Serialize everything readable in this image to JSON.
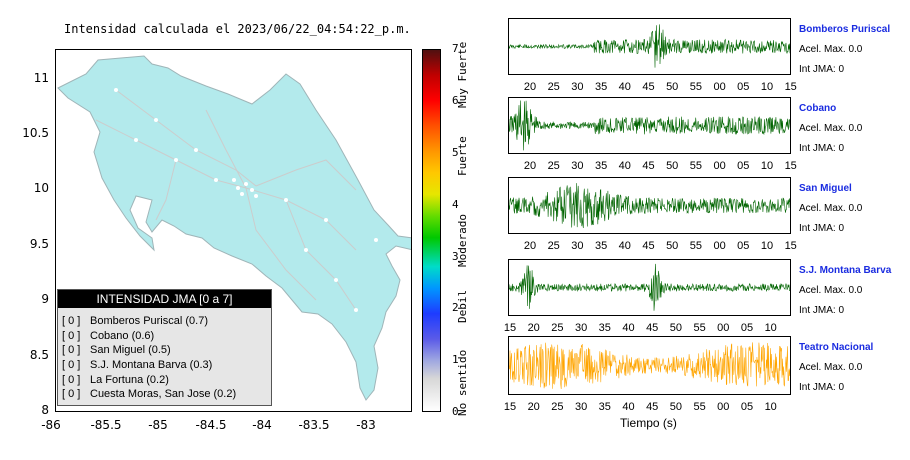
{
  "title": "Intensidad calculada el 2023/06/22_04:54:22_p.m.",
  "map": {
    "lon_ticks": [
      "-86",
      "-85.5",
      "-85",
      "-84.5",
      "-84",
      "-83.5",
      "-83"
    ],
    "lat_ticks": [
      "11",
      "10.5",
      "10",
      "9.5",
      "9",
      "8.5",
      "8"
    ],
    "land_color": "#b3eaec"
  },
  "legend": {
    "title": "INTENSIDAD JMA [0 a 7]",
    "entries": [
      {
        "bracket": "[ 0 ]",
        "label": "Bomberos Puriscal (0.7)"
      },
      {
        "bracket": "[ 0 ]",
        "label": "Cobano (0.6)"
      },
      {
        "bracket": "[ 0 ]",
        "label": "San Miguel (0.5)"
      },
      {
        "bracket": "[ 0 ]",
        "label": "S.J. Montana Barva (0.3)"
      },
      {
        "bracket": "[ 0 ]",
        "label": "La Fortuna (0.2)"
      },
      {
        "bracket": "[ 0 ]",
        "label": "Cuesta Moras, San Jose (0.2)"
      }
    ]
  },
  "colorbar": {
    "ticks": [
      "0",
      "1",
      "2",
      "3",
      "4",
      "5",
      "6",
      "7"
    ],
    "categories": [
      "No sentido",
      "Debil",
      "Moderado",
      "Fuerte",
      "Muy Fuerte"
    ]
  },
  "chart_data": {
    "type": "line",
    "xlabel": "Tiempo (s)",
    "traces": [
      {
        "station": "Bomberos Puriscal",
        "accel": "Acel. Max. 0.0",
        "int": "Int JMA: 0",
        "color": "#006400",
        "ticks": [
          "20",
          "25",
          "30",
          "35",
          "40",
          "45",
          "50",
          "55",
          "00",
          "05",
          "10",
          "15"
        ]
      },
      {
        "station": "Cobano",
        "accel": "Acel. Max. 0.0",
        "int": "Int JMA: 0",
        "color": "#006400",
        "ticks": [
          "20",
          "25",
          "30",
          "35",
          "40",
          "45",
          "50",
          "55",
          "00",
          "05",
          "10",
          "15"
        ]
      },
      {
        "station": "San Miguel",
        "accel": "Acel. Max. 0.0",
        "int": "Int JMA: 0",
        "color": "#006400",
        "ticks": [
          "20",
          "25",
          "30",
          "35",
          "40",
          "45",
          "50",
          "55",
          "00",
          "05",
          "10",
          "15"
        ]
      },
      {
        "station": "S.J. Montana Barva",
        "accel": "Acel. Max. 0.0",
        "int": "Int JMA: 0",
        "color": "#006400",
        "ticks": [
          "15",
          "20",
          "25",
          "30",
          "35",
          "40",
          "45",
          "50",
          "55",
          "00",
          "05",
          "10"
        ]
      },
      {
        "station": "Teatro Nacional",
        "accel": "Acel. Max. 0.0",
        "int": "Int JMA: 0",
        "color": "#ffa500",
        "ticks": [
          "15",
          "20",
          "25",
          "30",
          "35",
          "40",
          "45",
          "50",
          "55",
          "00",
          "05",
          "10"
        ]
      }
    ]
  }
}
